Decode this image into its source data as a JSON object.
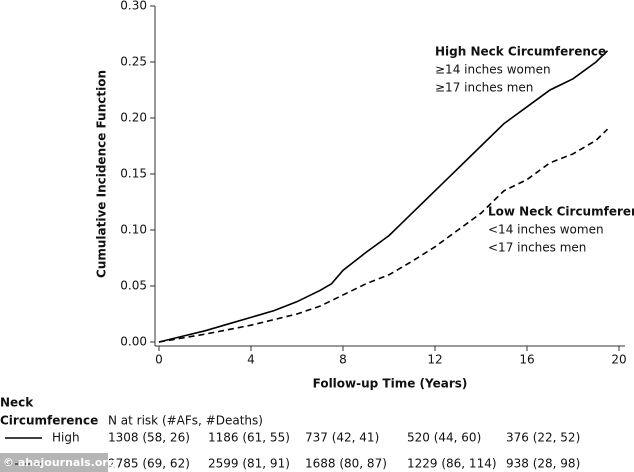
{
  "chart_data": {
    "type": "line",
    "x_label": "Follow-up Time (Years)",
    "y_label": "Cumulative Incidence Function",
    "xlim": [
      0,
      20
    ],
    "xticks": [
      0,
      4,
      8,
      12,
      16,
      20
    ],
    "ylim": [
      0,
      0.3
    ],
    "yticks": [
      {
        "value": 0,
        "label": "0.00"
      },
      {
        "value": 0.05,
        "label": "0.05"
      },
      {
        "value": 0.1,
        "label": "0.10"
      },
      {
        "value": 0.15,
        "label": "0.15"
      },
      {
        "value": 0.2,
        "label": "0.20"
      },
      {
        "value": 0.25,
        "label": "0.25"
      },
      {
        "value": 0.3,
        "label": "0.30"
      }
    ],
    "series": [
      {
        "name": "High Neck Circumference",
        "notes": [
          "≥14 inches women",
          "≥17 inches men"
        ],
        "color": "#000000",
        "dashed": false,
        "x": [
          0,
          1,
          2,
          3,
          4,
          5,
          6,
          7,
          7.5,
          8,
          9,
          10,
          11,
          12,
          13,
          14,
          15,
          16,
          17,
          18,
          19,
          19.5
        ],
        "values": [
          0,
          0.005,
          0.01,
          0.016,
          0.022,
          0.028,
          0.036,
          0.046,
          0.052,
          0.064,
          0.08,
          0.095,
          0.115,
          0.135,
          0.155,
          0.175,
          0.195,
          0.21,
          0.225,
          0.235,
          0.25,
          0.26
        ]
      },
      {
        "name": "Low Neck Circumference",
        "notes": [
          "<14 inches women",
          "<17 inches men"
        ],
        "color": "#000000",
        "dashed": true,
        "x": [
          0,
          2,
          4,
          6,
          7,
          8,
          9,
          10,
          11,
          12,
          13,
          14,
          15,
          16,
          17,
          18,
          19,
          19.5
        ],
        "values": [
          0,
          0.007,
          0.015,
          0.025,
          0.032,
          0.042,
          0.052,
          0.06,
          0.072,
          0.085,
          0.1,
          0.115,
          0.135,
          0.145,
          0.16,
          0.168,
          0.18,
          0.19
        ]
      }
    ],
    "risk_table": {
      "group_title": [
        "Neck",
        "Circumference"
      ],
      "header": "N at risk (#AFs, #Deaths)",
      "rows": [
        {
          "label": "High",
          "cells": [
            "1308 (58, 26)",
            "1186 (61, 55)",
            "737 (42, 41)",
            "520 (44, 60)",
            "376 (22, 52)"
          ]
        },
        {
          "label": null,
          "cells": [
            "2785 (69, 62)",
            "2599 (81, 91)",
            "1688 (80, 87)",
            "1229 (86, 114)",
            "938 (28, 98)"
          ]
        }
      ]
    },
    "watermark": "© ahajournals.org"
  }
}
